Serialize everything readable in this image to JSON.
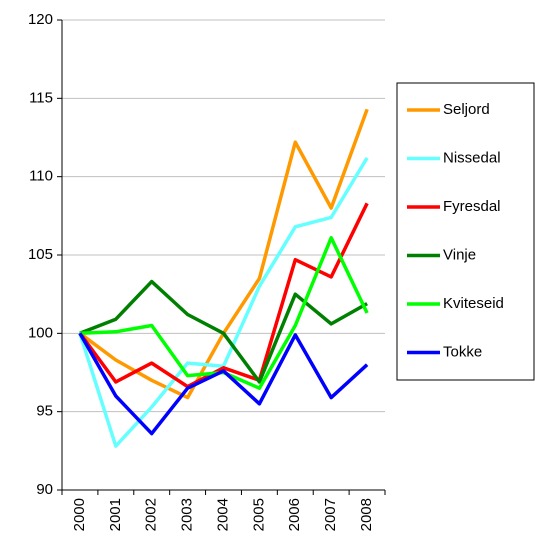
{
  "chart_data": {
    "type": "line",
    "categories": [
      "2000",
      "2001",
      "2002",
      "2003",
      "2004",
      "2005",
      "2006",
      "2007",
      "2008"
    ],
    "series": [
      {
        "name": "Seljord",
        "color": "#ff9900",
        "values": [
          100,
          98.3,
          97,
          95.9,
          100,
          103.5,
          112.2,
          108,
          114.3
        ]
      },
      {
        "name": "Nissedal",
        "color": "#66ffff",
        "values": [
          100,
          92.8,
          95.3,
          98.1,
          97.9,
          103,
          106.8,
          107.4,
          111.2
        ]
      },
      {
        "name": "Fyresdal",
        "color": "#ff0000",
        "values": [
          100,
          96.9,
          98.1,
          96.6,
          97.8,
          97,
          104.7,
          103.6,
          108.3
        ]
      },
      {
        "name": "Vinje",
        "color": "#008000",
        "values": [
          100,
          100.9,
          103.3,
          101.2,
          100,
          96.9,
          102.5,
          100.6,
          101.9
        ]
      },
      {
        "name": "Kviteseid",
        "color": "#00ff00",
        "values": [
          100,
          100.1,
          100.5,
          97.3,
          97.5,
          96.5,
          100.5,
          106.1,
          101.3
        ]
      },
      {
        "name": "Tokke",
        "color": "#0000ff",
        "values": [
          100,
          96,
          93.6,
          96.5,
          97.6,
          95.5,
          99.9,
          95.9,
          98
        ]
      }
    ],
    "ylim": [
      90,
      120
    ],
    "yticks": [
      90,
      95,
      100,
      105,
      110,
      115,
      120
    ],
    "grid": true,
    "legend": "right"
  }
}
